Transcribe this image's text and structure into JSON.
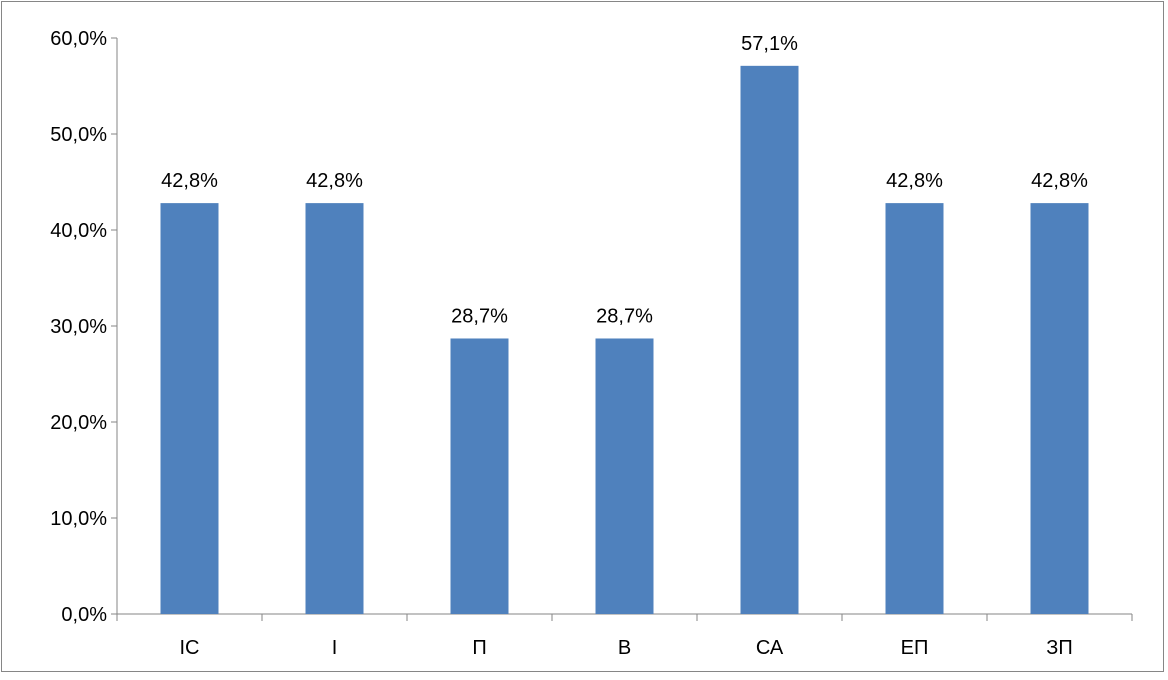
{
  "chart_data": {
    "type": "bar",
    "title": "",
    "xlabel": "",
    "ylabel": "",
    "categories": [
      "ІС",
      "І",
      "П",
      "В",
      "СА",
      "ЕП",
      "ЗП"
    ],
    "values": [
      42.8,
      42.8,
      28.7,
      28.7,
      57.1,
      42.8,
      42.8
    ],
    "value_labels": [
      "42,8%",
      "42,8%",
      "28,7%",
      "28,7%",
      "57,1%",
      "42,8%",
      "42,8%"
    ],
    "yticks": [
      0,
      10,
      20,
      30,
      40,
      50,
      60
    ],
    "ytick_labels": [
      "0,0%",
      "10,0%",
      "20,0%",
      "30,0%",
      "40,0%",
      "50,0%",
      "60,0%"
    ],
    "ylim": [
      0,
      60
    ],
    "grid": false,
    "legend": "none",
    "bar_color": "#4F81BD",
    "axis_color": "#868686"
  }
}
